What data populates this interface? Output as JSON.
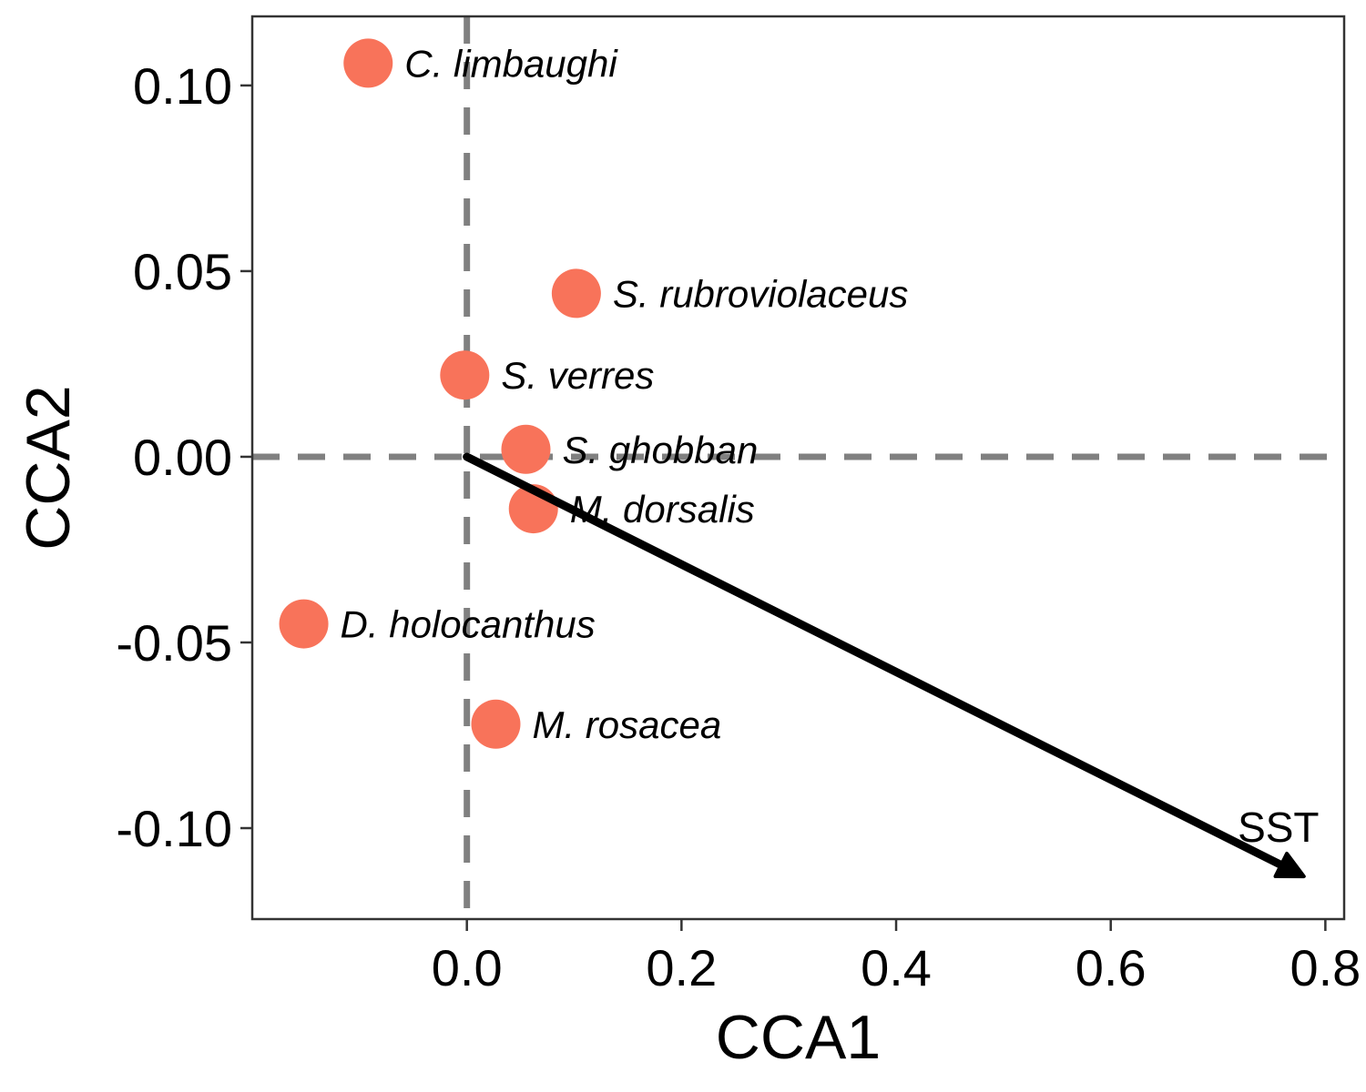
{
  "chart_data": {
    "type": "scatter",
    "title": "",
    "xlabel": "CCA1",
    "ylabel": "CCA2",
    "xlim": [
      -0.2,
      0.8175
    ],
    "ylim": [
      -0.1245,
      0.1186
    ],
    "x_ticks": [
      0.0,
      0.2,
      0.4,
      0.6,
      0.8
    ],
    "y_ticks": [
      -0.1,
      -0.05,
      0.0,
      0.05,
      0.1
    ],
    "x_tick_labels": [
      "0.0",
      "0.2",
      "0.4",
      "0.6",
      "0.8"
    ],
    "y_tick_labels": [
      "-0.10",
      "-0.05",
      "0.00",
      "0.05",
      "0.10"
    ],
    "grid": false,
    "reference_lines": [
      {
        "orientation": "vertical",
        "value": 0.0,
        "style": "dashed",
        "color": "#808080"
      },
      {
        "orientation": "horizontal",
        "value": 0.0,
        "style": "dashed",
        "color": "#808080"
      }
    ],
    "point_color": "#F8735A",
    "points": [
      {
        "label": "C. limbaughi",
        "x": -0.092,
        "y": 0.106
      },
      {
        "label": "S. rubroviolaceus",
        "x": 0.102,
        "y": 0.044
      },
      {
        "label": "S. verres",
        "x": -0.002,
        "y": 0.022
      },
      {
        "label": "S. ghobban",
        "x": 0.055,
        "y": 0.002
      },
      {
        "label": "M. dorsalis",
        "x": 0.062,
        "y": -0.014
      },
      {
        "label": "D. holocanthus",
        "x": -0.152,
        "y": -0.045
      },
      {
        "label": "M. rosacea",
        "x": 0.027,
        "y": -0.072
      }
    ],
    "arrows": [
      {
        "label": "SST",
        "from": [
          0.0,
          0.0
        ],
        "to": [
          0.78,
          -0.113
        ],
        "color": "#000000"
      }
    ]
  }
}
